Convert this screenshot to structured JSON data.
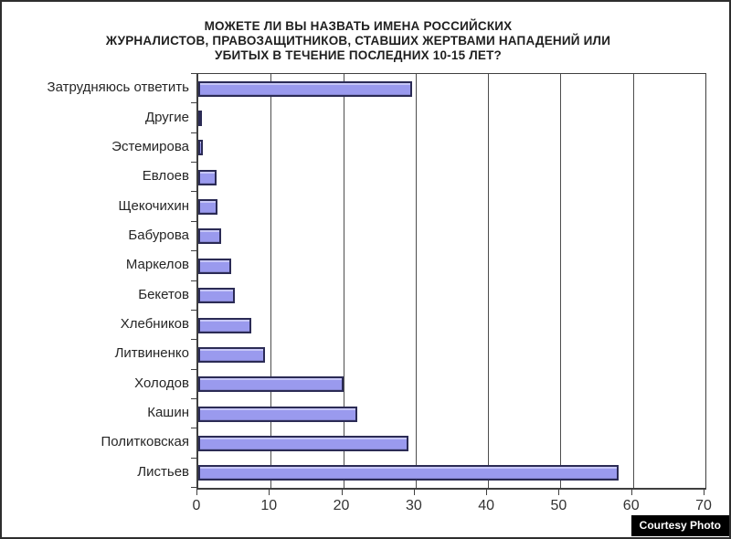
{
  "watermark": {
    "label": "Courtesy Photo"
  },
  "title_lines": [
    "МОЖЕТЕ ЛИ ВЫ НАЗВАТЬ  ИМЕНА РОССИЙСКИХ",
    "ЖУРНАЛИСТОВ,  ПРАВОЗАЩИТНИКОВ,  СТАВШИХ ЖЕРТВАМИ НАПАДЕНИЙ ИЛИ",
    "УБИТЫХ В ТЕЧЕНИЕ ПОСЛЕДНИХ  10-15 ЛЕТ?"
  ],
  "chart_data": {
    "type": "bar",
    "orientation": "horizontal",
    "title": "МОЖЕТЕ ЛИ ВЫ НАЗВАТЬ ИМЕНА РОССИЙСКИХ ЖУРНАЛИСТОВ, ПРАВОЗАЩИТНИКОВ, СТАВШИХ ЖЕРТВАМИ НАПАДЕНИЙ ИЛИ УБИТЫХ В ТЕЧЕНИЕ ПОСЛЕДНИХ 10-15 ЛЕТ?",
    "categories": [
      "Затрудняюсь ответить",
      "Другие",
      "Эстемирова",
      "Евлоев",
      "Щекочихин",
      "Бабурова",
      "Маркелов",
      "Бекетов",
      "Хлебников",
      "Литвиненко",
      "Холодов",
      "Кашин",
      "Политковская",
      "Листьев"
    ],
    "values": [
      29.5,
      0.4,
      0.6,
      2.5,
      2.7,
      3.2,
      4.6,
      5,
      7.3,
      9.2,
      20,
      22,
      29,
      58
    ],
    "xlabel": "",
    "ylabel": "",
    "xlim": [
      0,
      70
    ],
    "xticks": [
      0,
      10,
      20,
      30,
      40,
      50,
      60,
      70
    ],
    "grid": true,
    "legend": "none",
    "bar_color": "#9a9aee",
    "bar_border_color": "#2b2b55",
    "gridline_color": "#4d4d4d",
    "text_color": "#262626"
  }
}
